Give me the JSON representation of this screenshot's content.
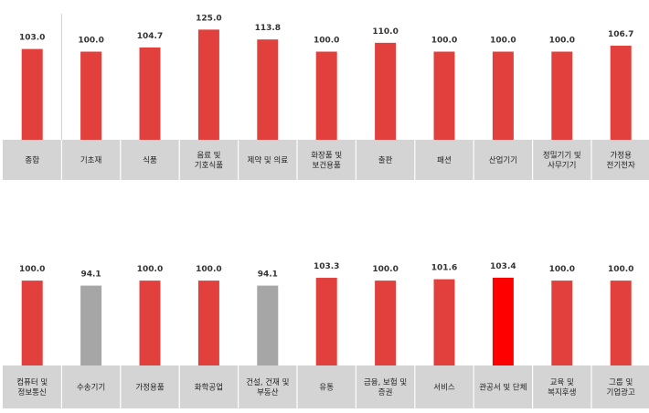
{
  "colors": {
    "bar": "#e2403c",
    "bar_highlight": "#ff0000",
    "bar_below_base": "#a6a6a6",
    "label_band": "#d4d4d4"
  },
  "chart_data": [
    {
      "type": "bar",
      "title": "",
      "xlabel": "",
      "ylabel": "",
      "categories": [
        [
          "종합"
        ],
        [
          "기초재"
        ],
        [
          "식품"
        ],
        [
          "음료 및",
          "기호식품"
        ],
        [
          "제약 및 의료"
        ],
        [
          "화장품 및",
          "보건용품"
        ],
        [
          "출판"
        ],
        [
          "패션"
        ],
        [
          "산업기기"
        ],
        [
          "정밀기기 및",
          "사무기기"
        ],
        [
          "가정용",
          "전기전자"
        ]
      ],
      "values": [
        103.0,
        100.0,
        104.7,
        125.0,
        113.8,
        100.0,
        110.0,
        100.0,
        100.0,
        100.0,
        106.7
      ],
      "value_labels": [
        "103.0",
        "100.0",
        "104.7",
        "125.0",
        "113.8",
        "100.0",
        "110.0",
        "100.0",
        "100.0",
        "100.0",
        "106.7"
      ],
      "ylim": [
        0,
        125
      ],
      "grid": false,
      "legend": "none"
    },
    {
      "type": "bar",
      "title": "",
      "xlabel": "",
      "ylabel": "",
      "categories": [
        [
          "컴퓨터 및",
          "정보통신"
        ],
        [
          "수송기기"
        ],
        [
          "가정용품"
        ],
        [
          "화학공업"
        ],
        [
          "건설, 건재 및",
          "부동산"
        ],
        [
          "유통"
        ],
        [
          "금융, 보험 및",
          "증권"
        ],
        [
          "서비스"
        ],
        [
          "관공서 및 단체"
        ],
        [
          "교육 및",
          "복지후생"
        ],
        [
          "그룹 및",
          "기업광고"
        ]
      ],
      "values": [
        100.0,
        94.1,
        100.0,
        100.0,
        94.1,
        103.3,
        100.0,
        101.6,
        103.4,
        100.0,
        100.0
      ],
      "value_labels": [
        "100.0",
        "94.1",
        "100.0",
        "100.0",
        "94.1",
        "103.3",
        "100.0",
        "101.6",
        "103.4",
        "100.0",
        "100.0"
      ],
      "ylim": [
        0,
        110
      ],
      "highlight_index": 8,
      "grid": false,
      "legend": "none"
    }
  ]
}
